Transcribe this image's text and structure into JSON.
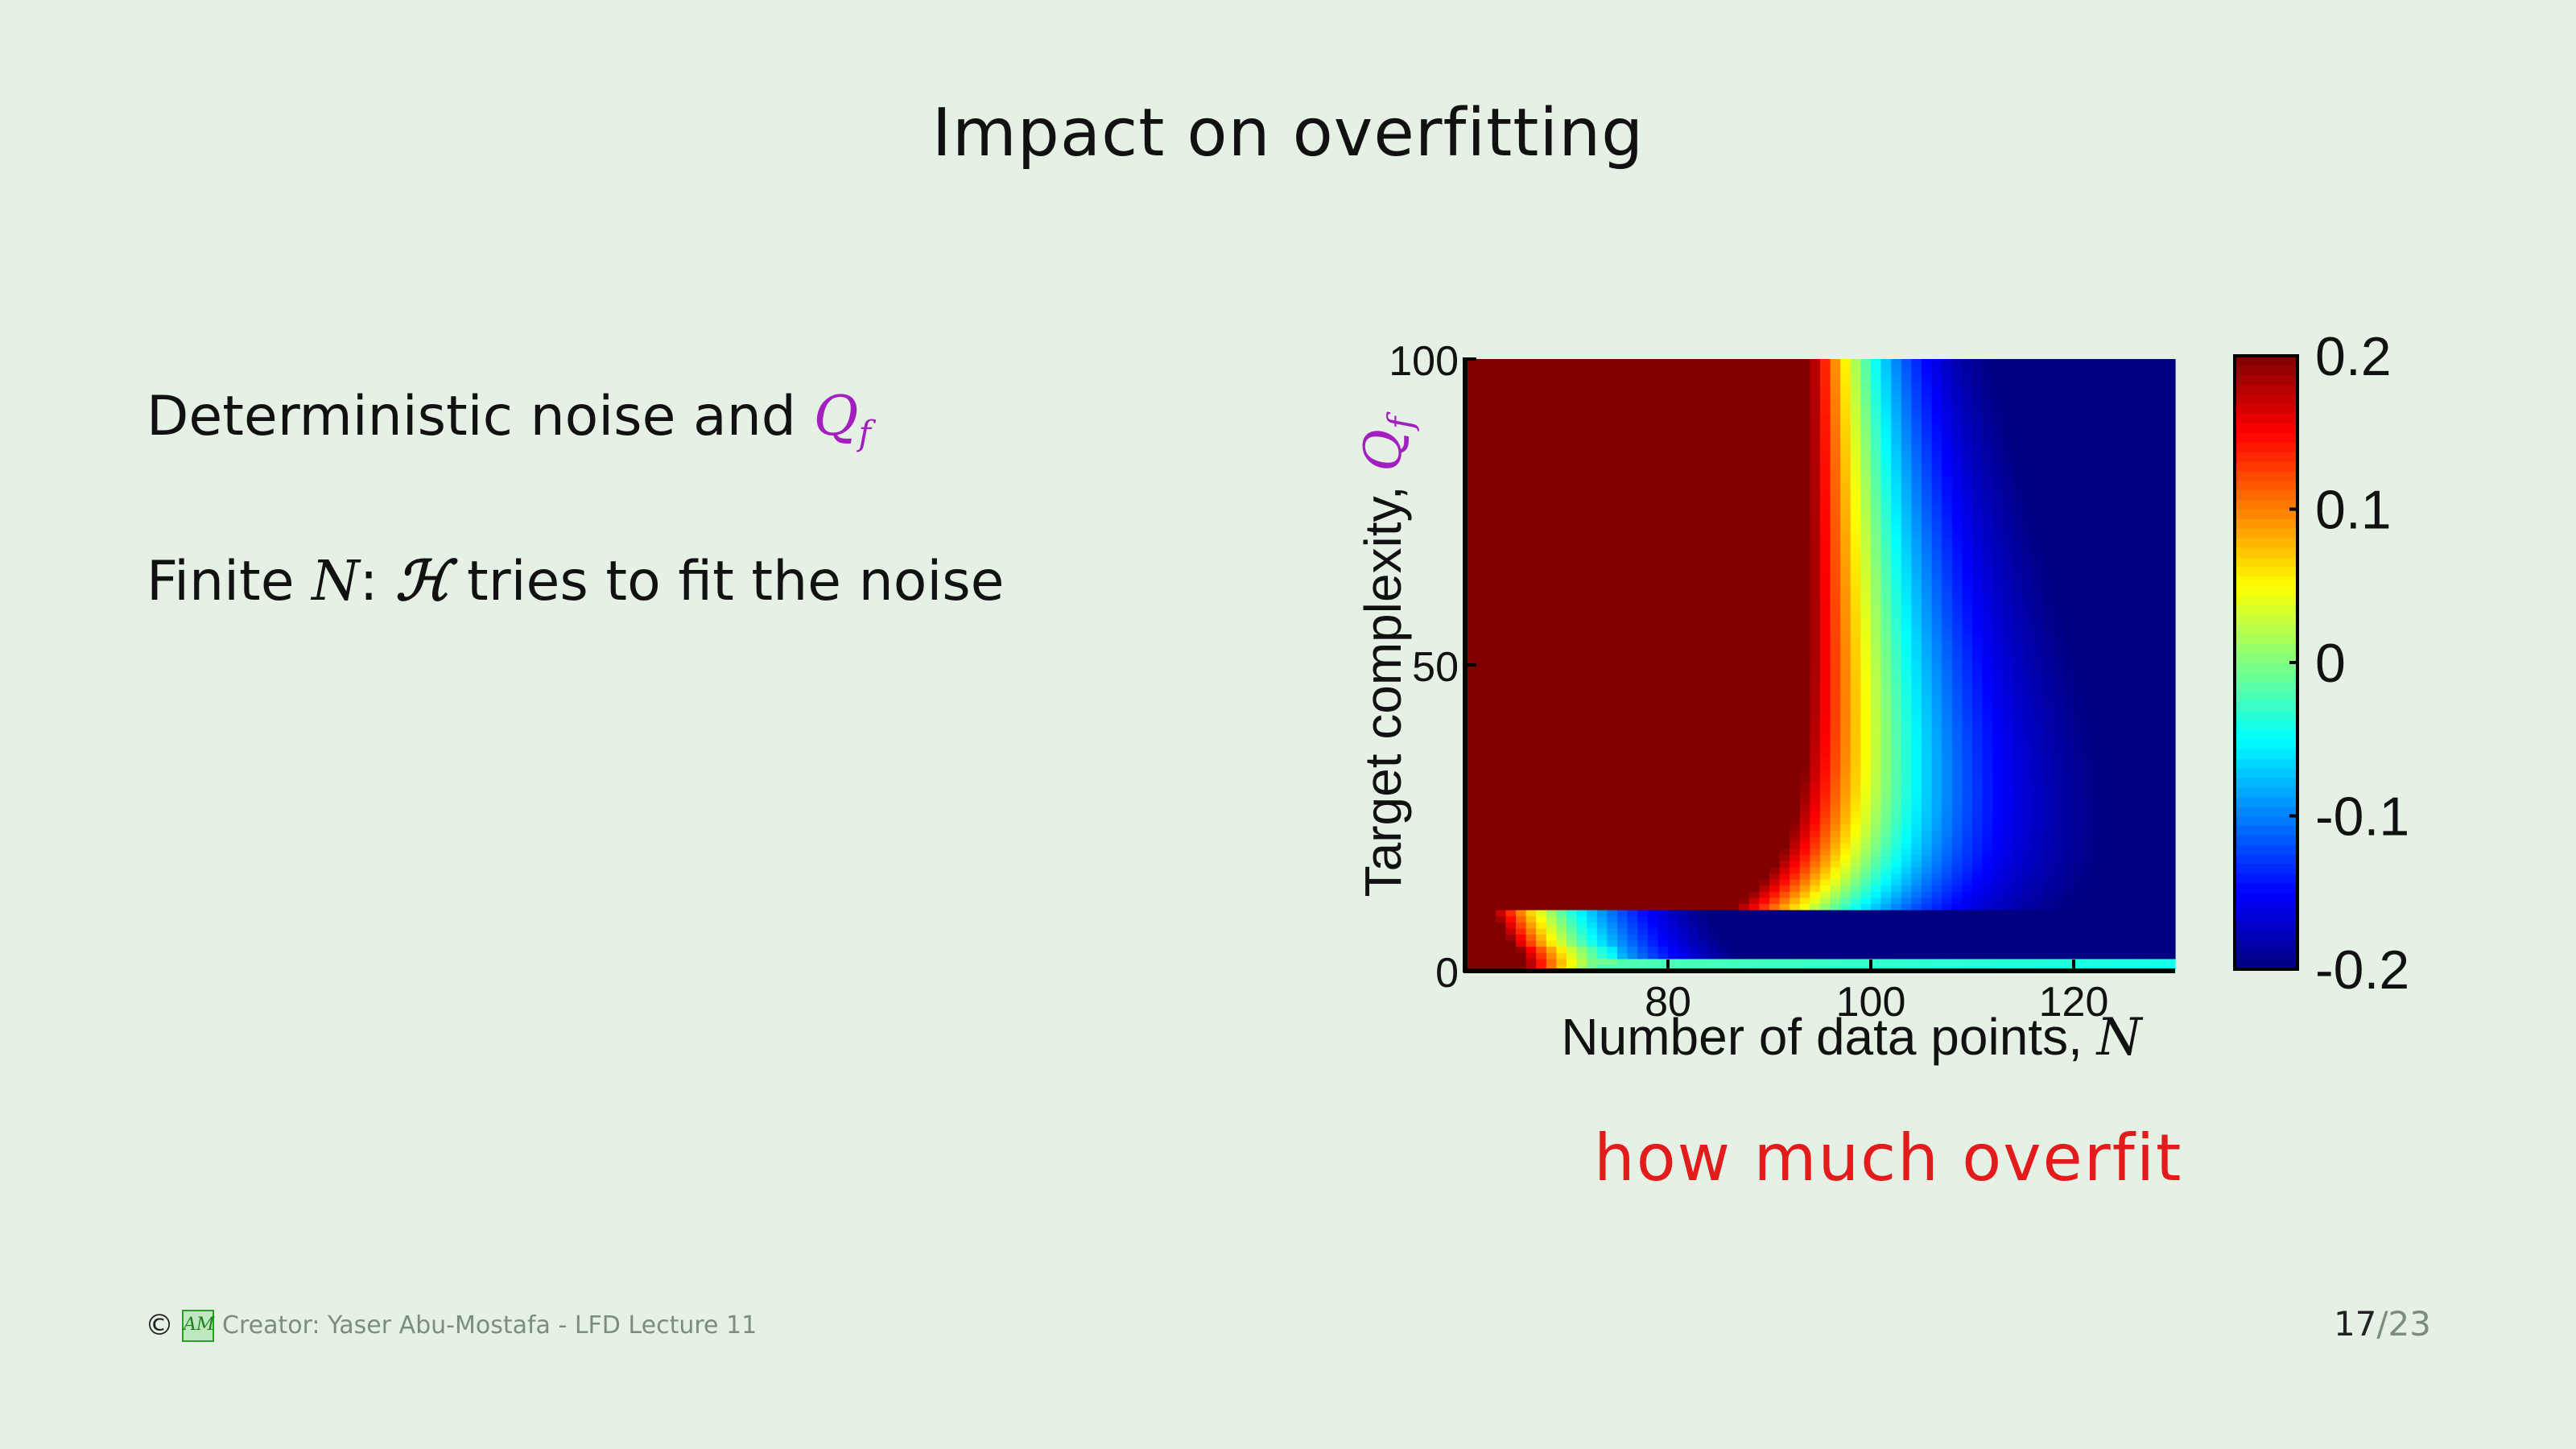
{
  "slide": {
    "title": "Impact on overfitting",
    "bullet1_text": "Deterministic noise and ",
    "bullet1_math": "Q",
    "bullet1_math_sub": "f",
    "bullet2_prefix": "Finite ",
    "bullet2_N": "N",
    "bullet2_colon": ":",
    "bullet2_H": "ℋ",
    "bullet2_suffix": " tries to fit the noise",
    "caption": "how much overfit",
    "accent_purple": "#a31fbf",
    "caption_color": "#e21b1b"
  },
  "footer": {
    "copyright_symbol": "©",
    "logo_text": "AM",
    "creator": "Creator: Yaser Abu-Mostafa - LFD Lecture 11",
    "page_current": "17",
    "page_total": "/23"
  },
  "chart_data": {
    "type": "heatmap",
    "title": "",
    "xlabel": "Number of data points, ",
    "xlabel_math": "N",
    "ylabel": "Target complexity, ",
    "ylabel_math": "Q",
    "ylabel_math_sub": "f",
    "xlim": [
      60,
      130
    ],
    "ylim": [
      0,
      100
    ],
    "xticks": [
      80,
      100,
      120
    ],
    "yticks": [
      0,
      50,
      100
    ],
    "colorbar": {
      "range": [
        -0.2,
        0.2
      ],
      "ticks": [
        0.2,
        0.1,
        0,
        -0.1,
        -0.2
      ],
      "tick_labels": [
        "0.2",
        "0.1",
        "0",
        "-0.1",
        "-0.2"
      ],
      "colormap": "jet"
    },
    "description_values": [
      {
        "region": "low N (N < ~87), Q_f > ~10",
        "value": 0.2
      },
      {
        "region": "large N, Q_f > ~20",
        "value": -0.2
      },
      {
        "region": "Q_f < ~10 band",
        "value": -0.2
      }
    ]
  }
}
